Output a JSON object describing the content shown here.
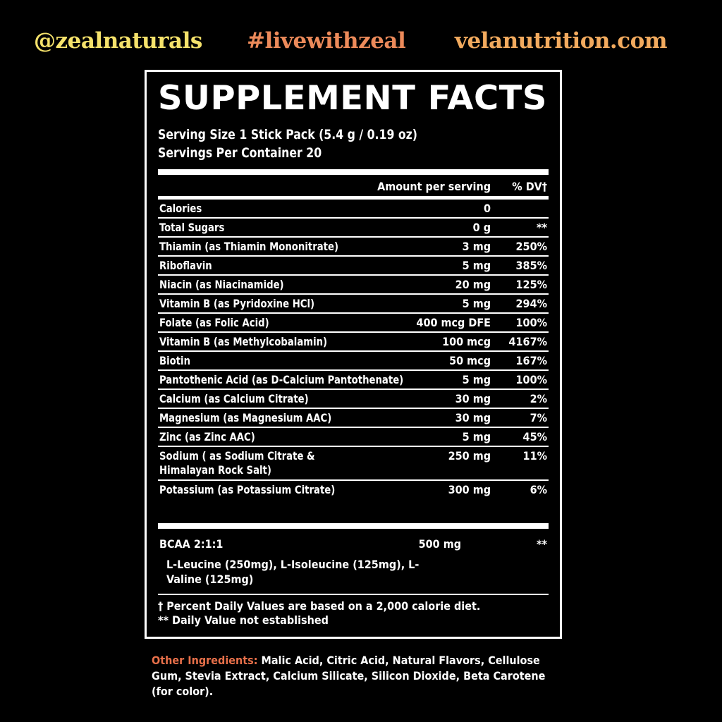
{
  "header_tags": {
    "handle": "@zealnaturals",
    "hashtag": "#livewithzeal",
    "website": "velanutrition.com"
  },
  "colors": {
    "handle": "#f5e26b",
    "hashtag": "#ec8a5a",
    "website": "#f2aa5e",
    "other_label": "#e8704a"
  },
  "facts": {
    "title": "SUPPLEMENT FACTS",
    "serving_size": "Serving Size 1 Stick Pack (5.4 g / 0.19 oz)",
    "servings_per_container": "Servings Per Container 20",
    "col_amount": "Amount per serving",
    "col_dv": "% DV†",
    "rows": [
      {
        "name": "Calories",
        "amount": "0",
        "dv": ""
      },
      {
        "name": "Total Sugars",
        "amount": "0 g",
        "dv": "**"
      },
      {
        "name": "Thiamin (as Thiamin Mononitrate)",
        "amount": "3 mg",
        "dv": "250%"
      },
      {
        "name": "Riboflavin",
        "amount": "5 mg",
        "dv": "385%"
      },
      {
        "name": "Niacin (as Niacinamide)",
        "amount": "20 mg",
        "dv": "125%"
      },
      {
        "name": "Vitamin B (as Pyridoxine HCl)",
        "amount": "5 mg",
        "dv": "294%"
      },
      {
        "name": "Folate (as Folic Acid)",
        "amount": "400 mcg DFE",
        "dv": "100%"
      },
      {
        "name": "Vitamin B (as Methylcobalamin)",
        "amount": "100 mcg",
        "dv": "4167%"
      },
      {
        "name": "Biotin",
        "amount": "50 mcg",
        "dv": "167%"
      },
      {
        "name": "Pantothenic Acid (as D-Calcium Pantothenate)",
        "amount": "5 mg",
        "dv": "100%"
      },
      {
        "name": "Calcium (as Calcium Citrate)",
        "amount": "30 mg",
        "dv": "2%"
      },
      {
        "name": "Magnesium (as Magnesium AAC)",
        "amount": "30 mg",
        "dv": "7%"
      },
      {
        "name": "Zinc (as Zinc AAC)",
        "amount": "5 mg",
        "dv": "45%"
      },
      {
        "name": "Sodium ( as Sodium Citrate & Himalayan Rock Salt)",
        "amount": "250 mg",
        "dv": "11%"
      },
      {
        "name": "Potassium (as Potassium Citrate)",
        "amount": "300 mg",
        "dv": "6%"
      }
    ],
    "bcaa": {
      "name": "BCAA 2:1:1",
      "amount": "500 mg",
      "dv": "**",
      "detail": "L-Leucine (250mg), L-Isoleucine (125mg), L-Valine (125mg)"
    },
    "footnote_1": "† Percent Daily Values are based on a 2,000 calorie diet.",
    "footnote_2": "** Daily Value not established"
  },
  "other_ingredients": {
    "label": "Other Ingredients:",
    "text": "Malic Acid, Citric Acid, Natural Flavors, Cellulose Gum, Stevia Extract, Calcium Silicate, Silicon Dioxide, Beta Carotene (for color)."
  }
}
